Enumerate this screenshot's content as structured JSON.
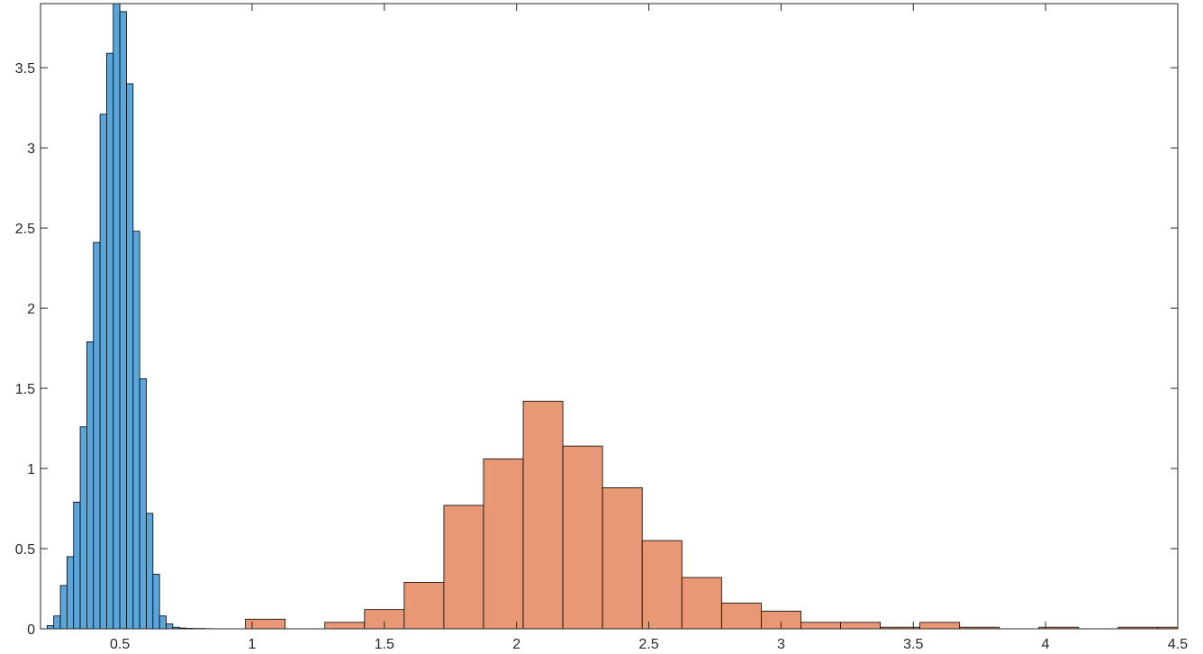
{
  "chart_data": {
    "type": "bar",
    "title": "",
    "xlabel": "",
    "ylabel": "",
    "xlim": [
      0.2,
      4.5
    ],
    "ylim": [
      0,
      3.9
    ],
    "grid": false,
    "box": true,
    "xticks": [
      0.5,
      1,
      1.5,
      2,
      2.5,
      3,
      3.5,
      4,
      4.5
    ],
    "xtick_labels": [
      "0.5",
      "1",
      "1.5",
      "2",
      "2.5",
      "3",
      "3.5",
      "4",
      "4.5"
    ],
    "yticks": [
      0,
      0.5,
      1,
      1.5,
      2,
      2.5,
      3,
      3.5
    ],
    "ytick_labels": [
      "0",
      "0.5",
      "1",
      "1.5",
      "2",
      "2.5",
      "3",
      "3.5"
    ],
    "series": [
      {
        "color": "#5aa5da",
        "bin_edges": [
          0.225,
          0.25,
          0.275,
          0.3,
          0.325,
          0.35,
          0.375,
          0.4,
          0.425,
          0.45,
          0.475,
          0.5,
          0.525,
          0.55,
          0.575,
          0.6,
          0.625,
          0.65,
          0.675,
          0.7,
          0.725,
          0.75,
          0.775,
          0.8,
          0.825,
          0.85,
          0.875,
          0.9,
          0.925
        ],
        "values": [
          0.02,
          0.08,
          0.27,
          0.45,
          0.79,
          1.26,
          1.79,
          2.41,
          3.21,
          3.59,
          3.9,
          3.85,
          3.4,
          2.48,
          1.56,
          0.72,
          0.34,
          0.08,
          0.03,
          0.01,
          0.005,
          0.003,
          0.002,
          0.002,
          0.001,
          0.0,
          0.0,
          0.0
        ]
      },
      {
        "color": "#e89874",
        "bin_edges": [
          0.975,
          1.125,
          1.275,
          1.425,
          1.575,
          1.725,
          1.875,
          2.025,
          2.175,
          2.325,
          2.475,
          2.625,
          2.775,
          2.925,
          3.075,
          3.225,
          3.375,
          3.525,
          3.675,
          3.825,
          3.975,
          4.125,
          4.275,
          4.425,
          4.575
        ],
        "values": [
          0.06,
          0.0,
          0.04,
          0.12,
          0.29,
          0.77,
          1.06,
          1.42,
          1.14,
          0.88,
          0.55,
          0.32,
          0.16,
          0.11,
          0.04,
          0.04,
          0.01,
          0.04,
          0.01,
          0.0,
          0.01,
          0.0,
          0.01,
          0.01
        ]
      }
    ]
  }
}
